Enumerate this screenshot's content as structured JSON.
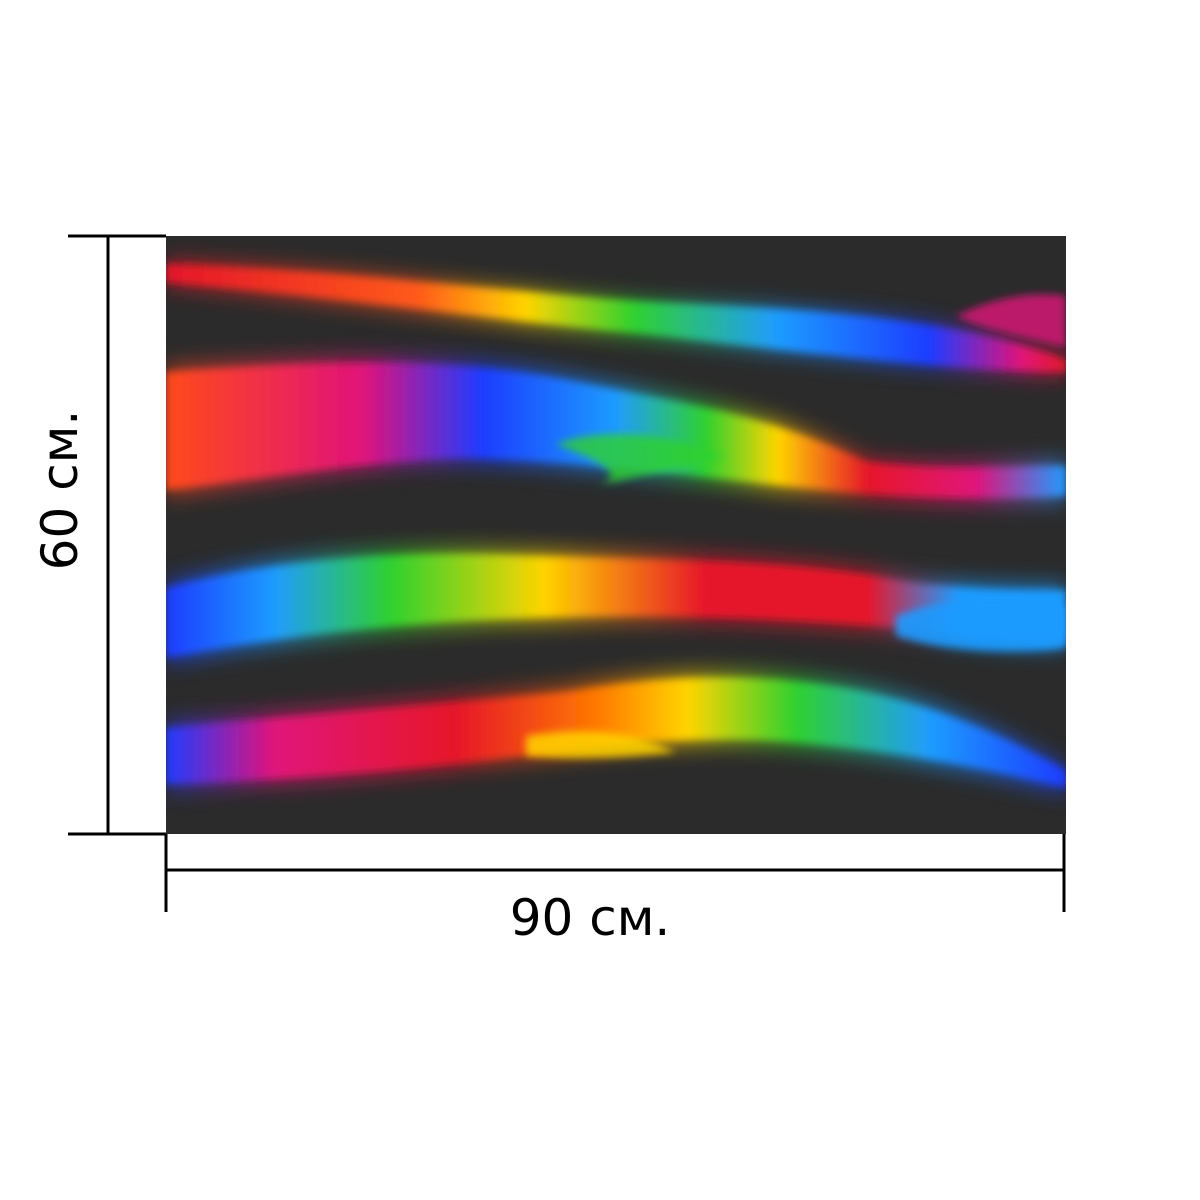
{
  "product": {
    "artwork": {
      "background_color": "#2b2b2b",
      "stroke_colors": [
        "#e6152a",
        "#ff7a00",
        "#ffd400",
        "#2fd12f",
        "#1f9bff",
        "#1f3cff",
        "#e0127a"
      ]
    },
    "dimensions": {
      "width_label": "90 см.",
      "height_label": "60 см."
    }
  }
}
